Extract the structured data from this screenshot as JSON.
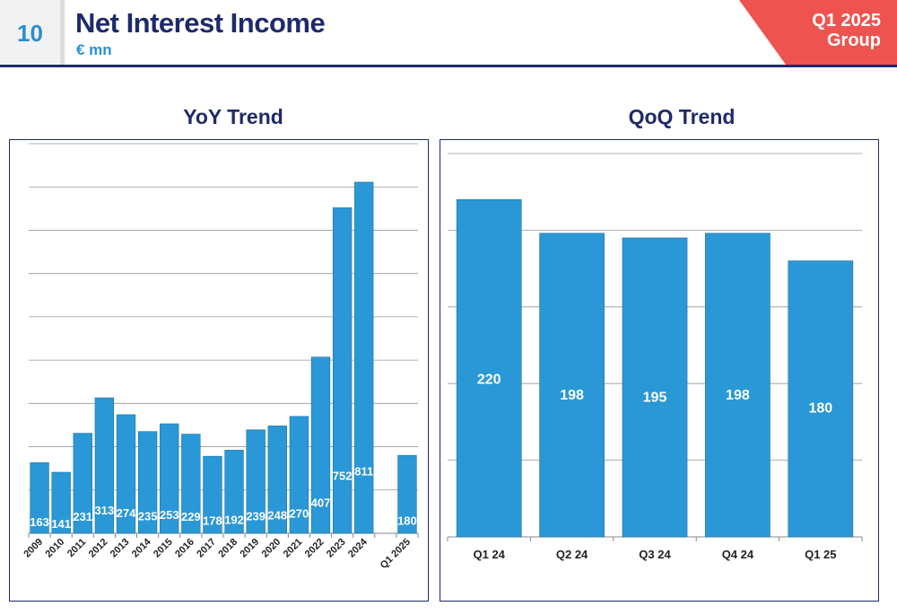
{
  "header": {
    "page_number": "10",
    "title": "Net Interest Income",
    "subtitle": "€ mn",
    "badge_line1": "Q1 2025",
    "badge_line2": "Group"
  },
  "colors": {
    "bar": "#2a98d6",
    "navy": "#1f2a6b",
    "accent_blue": "#2a8fd1",
    "badge_red": "#ef5350",
    "grid": "#555555"
  },
  "chart_data": [
    {
      "type": "bar",
      "title": "YoY Trend",
      "categories": [
        "2009",
        "2010",
        "2011",
        "2012",
        "2013",
        "2014",
        "2015",
        "2016",
        "2017",
        "2018",
        "2019",
        "2020",
        "2021",
        "2022",
        "2023",
        "2024",
        "",
        "Q1 2025"
      ],
      "values": [
        163,
        141,
        231,
        313,
        274,
        235,
        253,
        229,
        178,
        192,
        239,
        248,
        270,
        407,
        752,
        811,
        null,
        180
      ],
      "data_labels": [
        "163",
        "141",
        "231",
        "313",
        "274",
        "235",
        "253",
        "229",
        "178",
        "192",
        "239",
        "248",
        "270",
        "407",
        "752",
        "811",
        "",
        "180"
      ],
      "ylim": [
        0,
        900
      ],
      "grid": true,
      "xlabel": "",
      "ylabel": ""
    },
    {
      "type": "bar",
      "title": "QoQ Trend",
      "categories": [
        "Q1 24",
        "Q2 24",
        "Q3 24",
        "Q4 24",
        "Q1 25"
      ],
      "values": [
        220,
        198,
        195,
        198,
        180
      ],
      "data_labels": [
        "220",
        "198",
        "195",
        "198",
        "180"
      ],
      "ylim": [
        0,
        250
      ],
      "grid": true,
      "xlabel": "",
      "ylabel": ""
    }
  ]
}
